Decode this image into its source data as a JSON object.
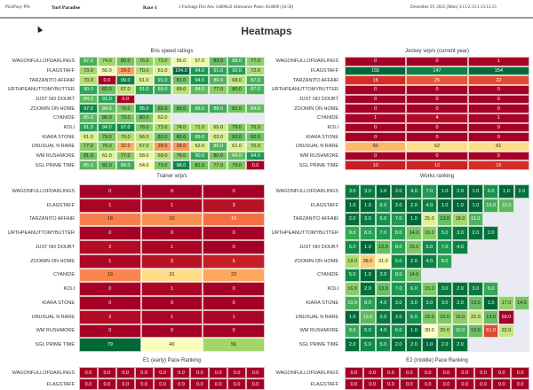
{
  "header": {
    "app": "PickPony PPs",
    "track": "Turf Paradise",
    "race": "Race 1",
    "conditions": "5 Furlongs Dirt Alw 14800n2l Allowance Purse: $14800 (16.50)",
    "date": "December 29, 2025 (Mon) 3:15/2:15/1:15/12:15"
  },
  "page_title": "Heatmaps",
  "colormap": [
    "#a50026",
    "#d73027",
    "#f46d43",
    "#fdae61",
    "#fee08b",
    "#ffffbf",
    "#d9ef8b",
    "#a6d96a",
    "#66bd63",
    "#1a9850",
    "#006837"
  ],
  "empty_color": "#eaeaf2",
  "heatmaps": [
    {
      "id": "bris",
      "title": "Bris speed ratings",
      "columns": 10,
      "decimals": 1,
      "vmin": 0,
      "vmax": 104,
      "reverse": false,
      "rows": [
        {
          "label": "WAGONFULLOFDARLINGS",
          "values": [
            87,
            74,
            80,
            76,
            73,
            56,
            57,
            83,
            88,
            77
          ]
        },
        {
          "label": "FLAGSTAFF",
          "values": [
            73,
            56,
            29,
            70,
            61,
            104,
            94,
            91,
            92,
            72
          ]
        },
        {
          "label": "TARZANITO AFFAIR",
          "values": [
            70,
            0,
            99,
            61,
            91,
            81,
            94,
            86,
            68,
            87
          ]
        },
        {
          "label": "URTHPEANUTTOMYBUTTER",
          "values": [
            90,
            82,
            67,
            91,
            89,
            69,
            84,
            77,
            80,
            87
          ]
        },
        {
          "label": "JUST NO DOUBT",
          "values": [
            84,
            91,
            0
          ]
        },
        {
          "label": "ZOOMIN ON HOME",
          "values": [
            97,
            84,
            79,
            95,
            82,
            83,
            88,
            88,
            81,
            84
          ]
        },
        {
          "label": "CYANIDE",
          "values": [
            85,
            80,
            79,
            80,
            62
          ]
        },
        {
          "label": "KOLI",
          "values": [
            91,
            94,
            97,
            78,
            73,
            74,
            71,
            65,
            79,
            76
          ]
        },
        {
          "label": "KIARA STONE",
          "values": [
            61,
            79,
            70,
            66,
            82,
            83,
            89,
            63,
            83,
            82
          ]
        },
        {
          "label": "UNUSUAL N RARE",
          "values": [
            77,
            76,
            32,
            67,
            28,
            28,
            62,
            86,
            61,
            70
          ]
        },
        {
          "label": "WM RUSHMORE",
          "values": [
            81,
            61,
            77,
            58,
            69,
            78,
            90,
            80,
            84,
            94
          ]
        },
        {
          "label": "SGL PRIME TIME",
          "values": [
            85,
            81,
            88,
            54,
            79,
            98,
            81,
            77,
            79,
            0
          ]
        }
      ]
    },
    {
      "id": "jockey",
      "title": "Jockey w/p/s (current year)",
      "columns": 3,
      "decimals": 0,
      "vmin": 0,
      "vmax": 155,
      "reverse": false,
      "rows": [
        {
          "label": "WAGONFULLOFDARLINGS",
          "values": [
            0,
            0,
            1
          ]
        },
        {
          "label": "FLAGSTAFF",
          "values": [
            155,
            147,
            154
          ]
        },
        {
          "label": "TARZANITO AFFAIR",
          "values": [
            15,
            25,
            22
          ]
        },
        {
          "label": "URTHPEANUTTOMYBUTTER",
          "values": [
            0,
            0,
            0
          ]
        },
        {
          "label": "JUST NO DOUBT",
          "values": [
            0,
            0,
            0
          ]
        },
        {
          "label": "ZOOMIN ON HOME",
          "values": [
            0,
            0,
            0
          ]
        },
        {
          "label": "CYANIDE",
          "values": [
            1,
            4,
            1
          ]
        },
        {
          "label": "KOLI",
          "values": [
            0,
            0,
            0
          ]
        },
        {
          "label": "KIARA STONE",
          "values": [
            0,
            0,
            0
          ]
        },
        {
          "label": "UNUSUAL N RARE",
          "values": [
            50,
            62,
            61
          ]
        },
        {
          "label": "WM RUSHMORE",
          "values": [
            0,
            0,
            0
          ]
        },
        {
          "label": "SGL PRIME TIME",
          "values": [
            10,
            12,
            15
          ]
        }
      ]
    },
    {
      "id": "trainer",
      "title": "Trainer w/p/s",
      "columns": 3,
      "decimals": 0,
      "vmin": 0,
      "vmax": 79,
      "reverse": false,
      "rows": [
        {
          "label": "WAGONFULLOFDARLINGS",
          "values": [
            0,
            0,
            0
          ]
        },
        {
          "label": "FLAGSTAFF",
          "values": [
            1,
            1,
            3
          ]
        },
        {
          "label": "TARZANITO AFFAIR",
          "values": [
            18,
            20,
            16
          ]
        },
        {
          "label": "URTHPEANUTTOMYBUTTER",
          "values": [
            0,
            0,
            0
          ]
        },
        {
          "label": "JUST NO DOUBT",
          "values": [
            2,
            1,
            0
          ]
        },
        {
          "label": "ZOOMIN ON HOME",
          "values": [
            1,
            3,
            5
          ]
        },
        {
          "label": "CYANIDE",
          "values": [
            19,
            31,
            23
          ]
        },
        {
          "label": "KOLI",
          "values": [
            0,
            1,
            0
          ]
        },
        {
          "label": "KIARA STONE",
          "values": [
            0,
            0,
            0
          ]
        },
        {
          "label": "UNUSUAL N RARE",
          "values": [
            2,
            1,
            1
          ]
        },
        {
          "label": "WM RUSHMORE",
          "values": [
            0,
            0,
            0
          ]
        },
        {
          "label": "SGL PRIME TIME",
          "values": [
            79,
            40,
            56
          ]
        }
      ]
    },
    {
      "id": "works",
      "title": "Works ranking",
      "columns": 12,
      "decimals": 1,
      "vmin": 1,
      "vmax": 59,
      "reverse": true,
      "rows": [
        {
          "label": "WAGONFULLOFDARLINGS",
          "values": [
            3,
            3,
            1,
            2,
            4,
            7,
            1,
            2,
            1,
            6,
            1,
            2
          ]
        },
        {
          "label": "FLAGSTAFF",
          "values": [
            1,
            1,
            6,
            2,
            2,
            4,
            1,
            1,
            1,
            10,
            12
          ]
        },
        {
          "label": "TARZANITO AFFAIR",
          "values": [
            2,
            3,
            6,
            7,
            1,
            25,
            13,
            18,
            11
          ]
        },
        {
          "label": "URTHPEANUTTOMYBUTTER",
          "values": [
            9,
            8,
            7,
            8,
            14,
            16,
            5,
            3,
            2,
            2
          ]
        },
        {
          "label": "JUST NO DOUBT",
          "values": [
            5,
            1,
            13,
            8,
            15,
            5,
            7,
            4
          ]
        },
        {
          "label": "ZOOMIN ON HOME",
          "values": [
            19,
            38,
            31,
            5,
            2,
            4,
            8
          ]
        },
        {
          "label": "CYANIDE",
          "values": [
            5,
            1,
            3,
            8,
            14
          ]
        },
        {
          "label": "KOLI",
          "values": [
            16,
            2,
            13,
            7,
            6,
            15,
            3,
            2,
            3,
            9
          ]
        },
        {
          "label": "KIARA STONE",
          "values": [
            10,
            8,
            4,
            3,
            3,
            3,
            3,
            2,
            13,
            1,
            17,
            14
          ]
        },
        {
          "label": "UNUSUAL N RARE",
          "values": [
            1,
            12,
            3,
            2,
            6,
            15,
            15,
            16,
            22,
            13,
            59
          ]
        },
        {
          "label": "WM RUSHMORE",
          "values": [
            9,
            5,
            4,
            6,
            1,
            30,
            20,
            10,
            13,
            51,
            22
          ]
        },
        {
          "label": "SGL PRIME TIME",
          "values": [
            2,
            5,
            5,
            2,
            2,
            1,
            2,
            2
          ]
        }
      ]
    },
    {
      "id": "e1",
      "title": "E1 (early) Pace Ranking",
      "columns": 10,
      "decimals": 1,
      "vmin": 0,
      "vmax": 0,
      "reverse": false,
      "rows": [
        {
          "label": "WAGONFULLOFDARLINGS",
          "values": [
            0,
            0,
            0,
            0,
            0,
            0,
            0,
            0,
            0,
            0
          ]
        },
        {
          "label": "FLAGSTAFF",
          "values": [
            0,
            0,
            0,
            0,
            0,
            0,
            0,
            0,
            0,
            0
          ]
        }
      ]
    },
    {
      "id": "e2",
      "title": "E2 (middle) Pace Ranking",
      "columns": 10,
      "decimals": 1,
      "vmin": 0,
      "vmax": 0,
      "reverse": false,
      "rows": [
        {
          "label": "WAGONFULLOFDARLINGS",
          "values": [
            0,
            0,
            0,
            0,
            0,
            0,
            0,
            0,
            0,
            0
          ]
        },
        {
          "label": "FLAGSTAFF",
          "values": [
            0,
            0,
            0,
            0,
            0,
            0,
            0,
            0,
            0,
            0
          ]
        }
      ]
    }
  ]
}
